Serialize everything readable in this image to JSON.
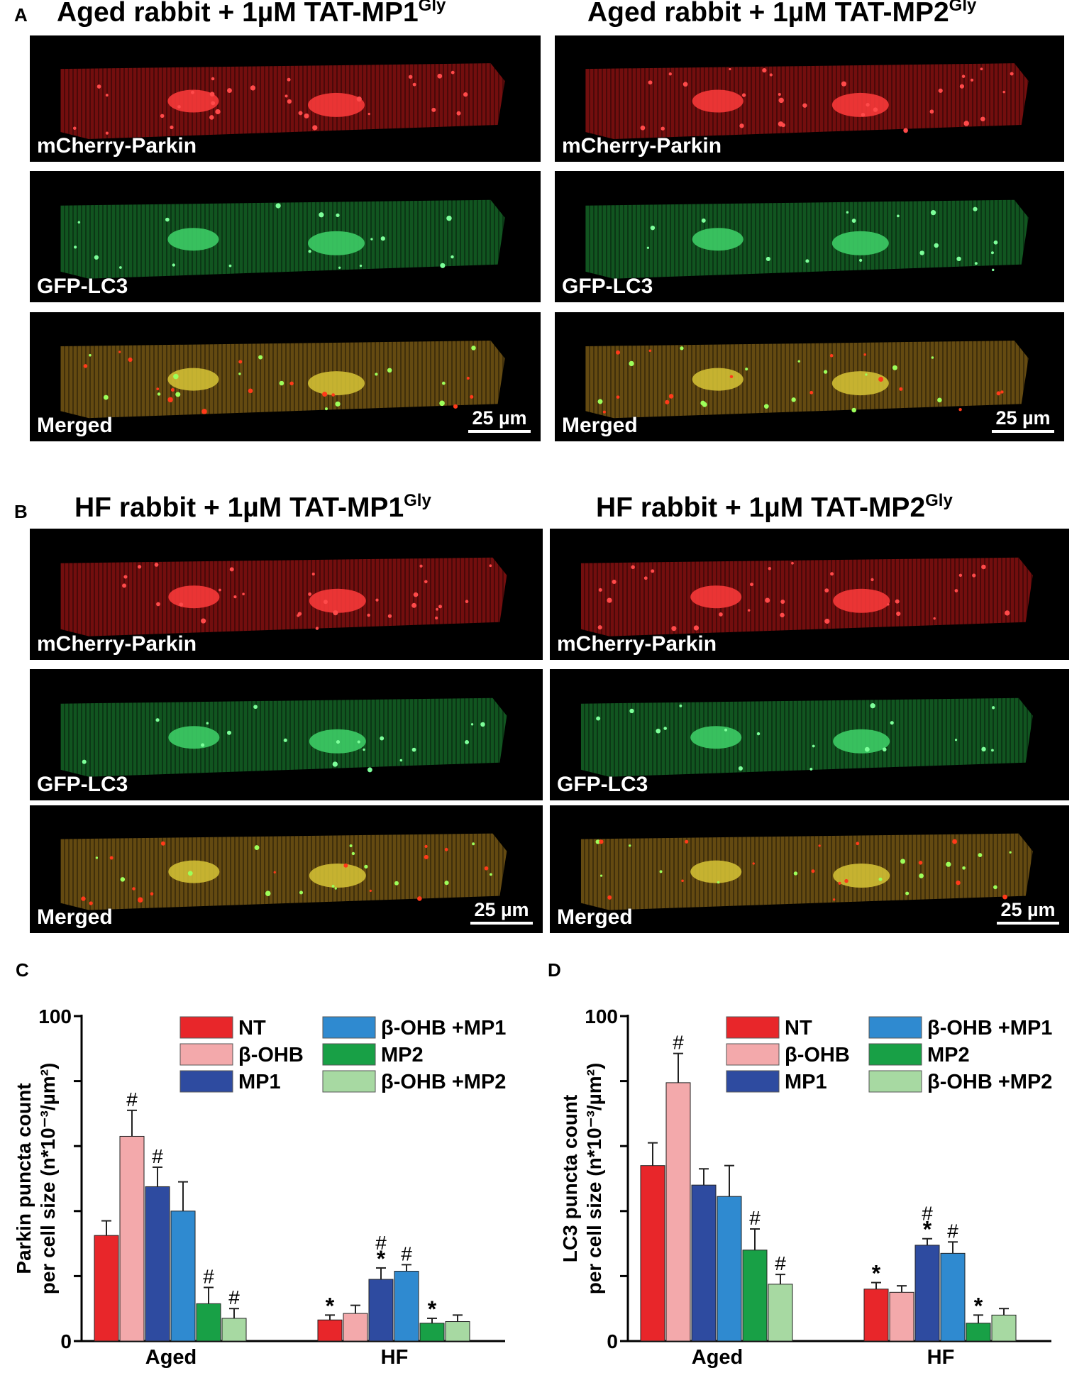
{
  "panels": {
    "A": {
      "letter": "A",
      "left_title": "Aged rabbit + 1µM TAT-MP1",
      "left_sup": "Gly",
      "right_title": "Aged rabbit + 1µM TAT-MP2",
      "right_sup": "Gly"
    },
    "B": {
      "letter": "B",
      "left_title": "HF rabbit + 1µM TAT-MP1",
      "left_sup": "Gly",
      "right_title": "HF rabbit + 1µM TAT-MP2",
      "right_sup": "Gly"
    },
    "C": {
      "letter": "C"
    },
    "D": {
      "letter": "D"
    }
  },
  "channels": {
    "parkin": "mCherry-Parkin",
    "lc3": "GFP-LC3",
    "merged": "Merged"
  },
  "scale_bar": "25 µm",
  "colors": {
    "NT": "#e8262a",
    "b_OHB": "#f3a9ab",
    "MP1": "#2e4ba0",
    "b_OHB_MP1": "#2f8ad0",
    "MP2": "#18a046",
    "b_OHB_MP2": "#a7d9a2",
    "parkin_red": "#d11a1a",
    "lc3_green": "#1f9a3a",
    "merged_orange": "#b5861e"
  },
  "chart_data": [
    {
      "type": "bar",
      "panel": "C",
      "ylabel": [
        "Parkin puncta count",
        "per cell size (n*10⁻³/µm²)"
      ],
      "ylim": [
        0,
        100
      ],
      "yticks": [
        0,
        20,
        40,
        60,
        80,
        100
      ],
      "y_tick_labels": [
        "0",
        "",
        "",
        "",
        "",
        "100"
      ],
      "grid": false,
      "legend_position": "top-right",
      "categories": [
        "Aged",
        "HF"
      ],
      "series": [
        {
          "name": "NT",
          "color_key": "NT",
          "values": [
            32.5,
            6.5
          ],
          "errors": [
            4.5,
            1.5
          ],
          "marks": [
            "",
            "*"
          ]
        },
        {
          "name": "β-OHB",
          "color_key": "b_OHB",
          "values": [
            63,
            8.5
          ],
          "errors": [
            8,
            2.5
          ],
          "marks": [
            "#",
            ""
          ]
        },
        {
          "name": "MP1",
          "color_key": "MP1",
          "values": [
            47.5,
            19
          ],
          "errors": [
            6,
            3.5
          ],
          "marks": [
            "#",
            "#*"
          ]
        },
        {
          "name": "β-OHB +MP1",
          "color_key": "b_OHB_MP1",
          "values": [
            40,
            21.5
          ],
          "errors": [
            9,
            2
          ],
          "marks": [
            "",
            "#"
          ]
        },
        {
          "name": "MP2",
          "color_key": "MP2",
          "values": [
            11.5,
            5.5
          ],
          "errors": [
            5,
            1.5
          ],
          "marks": [
            "#",
            "*"
          ]
        },
        {
          "name": "β-OHB +MP2",
          "color_key": "b_OHB_MP2",
          "values": [
            7,
            6
          ],
          "errors": [
            3,
            2
          ],
          "marks": [
            "#",
            ""
          ]
        }
      ]
    },
    {
      "type": "bar",
      "panel": "D",
      "ylabel": [
        "LC3 puncta count",
        "per cell size (n*10⁻³/µm²)"
      ],
      "ylim": [
        0,
        100
      ],
      "yticks": [
        0,
        20,
        40,
        60,
        80,
        100
      ],
      "y_tick_labels": [
        "0",
        "",
        "",
        "",
        "",
        "100"
      ],
      "grid": false,
      "legend_position": "top-right",
      "categories": [
        "Aged",
        "HF"
      ],
      "series": [
        {
          "name": "NT",
          "color_key": "NT",
          "values": [
            54,
            16
          ],
          "errors": [
            7,
            2
          ],
          "marks": [
            "",
            "*"
          ]
        },
        {
          "name": "β-OHB",
          "color_key": "b_OHB",
          "values": [
            79.5,
            15
          ],
          "errors": [
            9,
            2
          ],
          "marks": [
            "#",
            ""
          ]
        },
        {
          "name": "MP1",
          "color_key": "MP1",
          "values": [
            48,
            29.5
          ],
          "errors": [
            5,
            2
          ],
          "marks": [
            "",
            "#*"
          ]
        },
        {
          "name": "β-OHB +MP1",
          "color_key": "b_OHB_MP1",
          "values": [
            44.5,
            27
          ],
          "errors": [
            9.5,
            3.5
          ],
          "marks": [
            "",
            "#"
          ]
        },
        {
          "name": "MP2",
          "color_key": "MP2",
          "values": [
            28,
            5.5
          ],
          "errors": [
            6.5,
            2.5
          ],
          "marks": [
            "#",
            "*"
          ]
        },
        {
          "name": "β-OHB +MP2",
          "color_key": "b_OHB_MP2",
          "values": [
            17.5,
            8
          ],
          "errors": [
            3,
            2
          ],
          "marks": [
            "#",
            ""
          ]
        }
      ]
    }
  ]
}
